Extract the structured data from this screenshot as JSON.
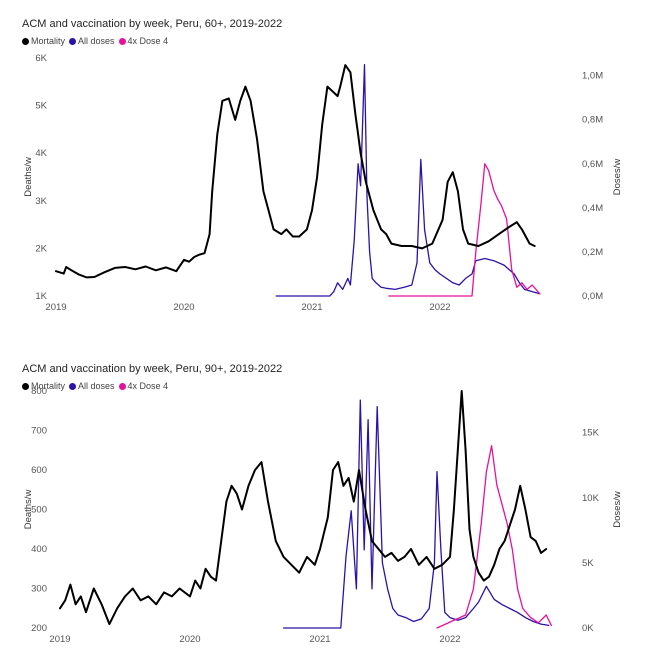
{
  "chart_data": [
    {
      "type": "line",
      "title": "ACM and vaccination by week, Peru, 60+, 2019-2022",
      "legend": {
        "placement": "top-left",
        "entries": [
          "Mortality",
          "All doses",
          "4x Dose 4"
        ]
      },
      "colors": {
        "mortality": "#000000",
        "all_doses": "#2b13a8",
        "dose4": "#e4129a"
      },
      "xlim": [
        2019.0,
        2023.0
      ],
      "x_ticks": [
        2019,
        2020,
        2021,
        2022
      ],
      "x_tick_labels": [
        "2019",
        "2020",
        "2021",
        "2022"
      ],
      "y_left": {
        "label": "Deaths/w",
        "lim": [
          1000,
          6000
        ],
        "ticks": [
          1000,
          2000,
          3000,
          4000,
          5000,
          6000
        ],
        "tick_labels": [
          "1K",
          "2K",
          "3K",
          "4K",
          "5K",
          "6K"
        ]
      },
      "y_right": {
        "label": "Doses/w",
        "lim": [
          0,
          1080000
        ],
        "ticks": [
          0,
          200000,
          400000,
          600000,
          800000,
          1000000
        ],
        "tick_labels": [
          "0,0M",
          "0,2M",
          "0,4M",
          "0,6M",
          "0,8M",
          "1,0M"
        ]
      },
      "series": [
        {
          "name": "Mortality",
          "axis": "left",
          "color": "#000000",
          "x": [
            2019.0,
            2019.06,
            2019.08,
            2019.12,
            2019.18,
            2019.24,
            2019.3,
            2019.38,
            2019.46,
            2019.54,
            2019.62,
            2019.7,
            2019.78,
            2019.86,
            2019.94,
            2020.0,
            2020.04,
            2020.08,
            2020.12,
            2020.16,
            2020.2,
            2020.22,
            2020.26,
            2020.3,
            2020.35,
            2020.4,
            2020.44,
            2020.48,
            2020.52,
            2020.57,
            2020.62,
            2020.66,
            2020.7,
            2020.76,
            2020.8,
            2020.85,
            2020.9,
            2020.96,
            2021.0,
            2021.04,
            2021.08,
            2021.12,
            2021.16,
            2021.2,
            2021.22,
            2021.26,
            2021.3,
            2021.34,
            2021.36,
            2021.38,
            2021.42,
            2021.48,
            2021.54,
            2021.58,
            2021.62,
            2021.7,
            2021.78,
            2021.86,
            2021.94,
            2022.02,
            2022.06,
            2022.1,
            2022.14,
            2022.18,
            2022.22,
            2022.3,
            2022.38,
            2022.46,
            2022.54,
            2022.6,
            2022.64,
            2022.7,
            2022.74
          ],
          "y": [
            1520,
            1470,
            1610,
            1540,
            1450,
            1390,
            1400,
            1500,
            1590,
            1610,
            1560,
            1620,
            1540,
            1600,
            1520,
            1760,
            1720,
            1820,
            1870,
            1900,
            2300,
            3200,
            4400,
            5100,
            5150,
            4700,
            5100,
            5400,
            5100,
            4300,
            3200,
            2800,
            2400,
            2300,
            2400,
            2250,
            2250,
            2400,
            2800,
            3500,
            4600,
            5400,
            5300,
            5200,
            5400,
            5850,
            5700,
            4800,
            4400,
            4000,
            3400,
            2800,
            2400,
            2300,
            2100,
            2050,
            2050,
            2000,
            2100,
            2600,
            3400,
            3600,
            3200,
            2400,
            2100,
            2050,
            2150,
            2300,
            2450,
            2550,
            2400,
            2100,
            2050
          ]
        },
        {
          "name": "All doses",
          "axis": "right",
          "color": "#2b13a8",
          "x": [
            2020.72,
            2021.14,
            2021.17,
            2021.2,
            2021.24,
            2021.28,
            2021.3,
            2021.33,
            2021.36,
            2021.38,
            2021.41,
            2021.43,
            2021.45,
            2021.47,
            2021.5,
            2021.54,
            2021.58,
            2021.65,
            2021.72,
            2021.78,
            2021.82,
            2021.85,
            2021.88,
            2021.92,
            2021.96,
            2022.0,
            2022.05,
            2022.1,
            2022.15,
            2022.2,
            2022.25,
            2022.28,
            2022.35,
            2022.42,
            2022.5,
            2022.58,
            2022.62,
            2022.66,
            2022.72,
            2022.78
          ],
          "y": [
            0,
            0,
            20000,
            60000,
            30000,
            80000,
            50000,
            250000,
            600000,
            500000,
            1050000,
            450000,
            200000,
            80000,
            60000,
            40000,
            35000,
            30000,
            40000,
            50000,
            150000,
            620000,
            300000,
            150000,
            120000,
            100000,
            80000,
            60000,
            50000,
            80000,
            100000,
            160000,
            170000,
            160000,
            140000,
            100000,
            60000,
            30000,
            20000,
            10000
          ]
        },
        {
          "name": "4x Dose 4",
          "axis": "right",
          "color": "#e4129a",
          "x": [
            2021.6,
            2022.25,
            2022.28,
            2022.32,
            2022.35,
            2022.38,
            2022.42,
            2022.45,
            2022.48,
            2022.52,
            2022.56,
            2022.6,
            2022.64,
            2022.68,
            2022.72,
            2022.78
          ],
          "y": [
            0,
            0,
            200000,
            420000,
            600000,
            570000,
            480000,
            440000,
            410000,
            350000,
            120000,
            40000,
            60000,
            30000,
            50000,
            10000
          ]
        }
      ]
    },
    {
      "type": "line",
      "title": "ACM and vaccination by week, Peru, 90+, 2019-2022",
      "legend": {
        "placement": "top-left",
        "entries": [
          "Mortality",
          "All doses",
          "4x Dose 4"
        ]
      },
      "colors": {
        "mortality": "#000000",
        "all_doses": "#2b13a8",
        "dose4": "#e4129a"
      },
      "xlim": [
        2019.0,
        2023.0
      ],
      "x_ticks": [
        2019,
        2020,
        2021,
        2022
      ],
      "x_tick_labels": [
        "2019",
        "2020",
        "2021",
        "2022"
      ],
      "y_left": {
        "label": "Deaths/w",
        "lim": [
          200,
          800
        ],
        "ticks": [
          200,
          300,
          400,
          500,
          600,
          700,
          800
        ],
        "tick_labels": [
          "200",
          "300",
          "400",
          "500",
          "600",
          "700",
          "800"
        ]
      },
      "y_right": {
        "label": "Doses/w",
        "lim": [
          0,
          18200
        ],
        "ticks": [
          0,
          5000,
          10000,
          15000
        ],
        "tick_labels": [
          "0K",
          "5K",
          "10K",
          "15K"
        ]
      },
      "series": [
        {
          "name": "Mortality",
          "axis": "left",
          "color": "#000000",
          "x": [
            2019.0,
            2019.04,
            2019.08,
            2019.12,
            2019.16,
            2019.2,
            2019.26,
            2019.32,
            2019.38,
            2019.44,
            2019.5,
            2019.56,
            2019.62,
            2019.68,
            2019.74,
            2019.8,
            2019.86,
            2019.92,
            2020.0,
            2020.04,
            2020.08,
            2020.12,
            2020.16,
            2020.2,
            2020.24,
            2020.28,
            2020.32,
            2020.36,
            2020.4,
            2020.45,
            2020.5,
            2020.55,
            2020.6,
            2020.66,
            2020.72,
            2020.78,
            2020.84,
            2020.9,
            2020.96,
            2021.0,
            2021.06,
            2021.1,
            2021.14,
            2021.18,
            2021.22,
            2021.26,
            2021.3,
            2021.35,
            2021.4,
            2021.45,
            2021.5,
            2021.55,
            2021.6,
            2021.65,
            2021.7,
            2021.76,
            2021.82,
            2021.88,
            2021.94,
            2022.0,
            2022.03,
            2022.06,
            2022.09,
            2022.12,
            2022.15,
            2022.18,
            2022.22,
            2022.26,
            2022.3,
            2022.34,
            2022.38,
            2022.42,
            2022.46,
            2022.5,
            2022.54,
            2022.58,
            2022.62,
            2022.66,
            2022.7,
            2022.74
          ],
          "y": [
            250,
            270,
            310,
            260,
            280,
            240,
            300,
            260,
            210,
            250,
            280,
            300,
            270,
            280,
            260,
            290,
            280,
            300,
            280,
            320,
            300,
            350,
            330,
            320,
            420,
            520,
            560,
            540,
            500,
            560,
            600,
            620,
            520,
            420,
            380,
            360,
            340,
            380,
            360,
            400,
            480,
            600,
            620,
            560,
            580,
            520,
            600,
            500,
            420,
            400,
            380,
            390,
            370,
            380,
            400,
            360,
            380,
            350,
            360,
            380,
            500,
            650,
            800,
            650,
            450,
            380,
            340,
            320,
            330,
            360,
            400,
            420,
            460,
            500,
            560,
            500,
            430,
            420,
            390,
            400
          ]
        },
        {
          "name": "All doses",
          "axis": "right",
          "color": "#2b13a8",
          "x": [
            2020.72,
            2021.16,
            2021.2,
            2021.24,
            2021.28,
            2021.31,
            2021.34,
            2021.37,
            2021.4,
            2021.44,
            2021.48,
            2021.52,
            2021.56,
            2021.6,
            2021.66,
            2021.72,
            2021.78,
            2021.84,
            2021.88,
            2021.9,
            2021.93,
            2021.96,
            2022.0,
            2022.06,
            2022.12,
            2022.18,
            2022.22,
            2022.28,
            2022.34,
            2022.4,
            2022.46,
            2022.52,
            2022.58,
            2022.64,
            2022.7,
            2022.76
          ],
          "y": [
            0,
            0,
            5500,
            9000,
            3000,
            17500,
            6000,
            16000,
            3000,
            17000,
            5000,
            3000,
            1500,
            1000,
            800,
            500,
            700,
            1500,
            5000,
            12000,
            6000,
            1200,
            800,
            600,
            800,
            1500,
            2000,
            3200,
            2200,
            1800,
            1500,
            1200,
            800,
            500,
            300,
            200
          ]
        },
        {
          "name": "4x Dose 4",
          "axis": "right",
          "color": "#e4129a",
          "x": [
            2021.9,
            2022.12,
            2022.18,
            2022.24,
            2022.28,
            2022.32,
            2022.36,
            2022.4,
            2022.44,
            2022.48,
            2022.52,
            2022.56,
            2022.62,
            2022.68,
            2022.74,
            2022.78
          ],
          "y": [
            0,
            1000,
            3000,
            8000,
            12000,
            14000,
            11000,
            9500,
            8000,
            6000,
            3000,
            1500,
            800,
            400,
            1000,
            200
          ]
        }
      ]
    }
  ]
}
